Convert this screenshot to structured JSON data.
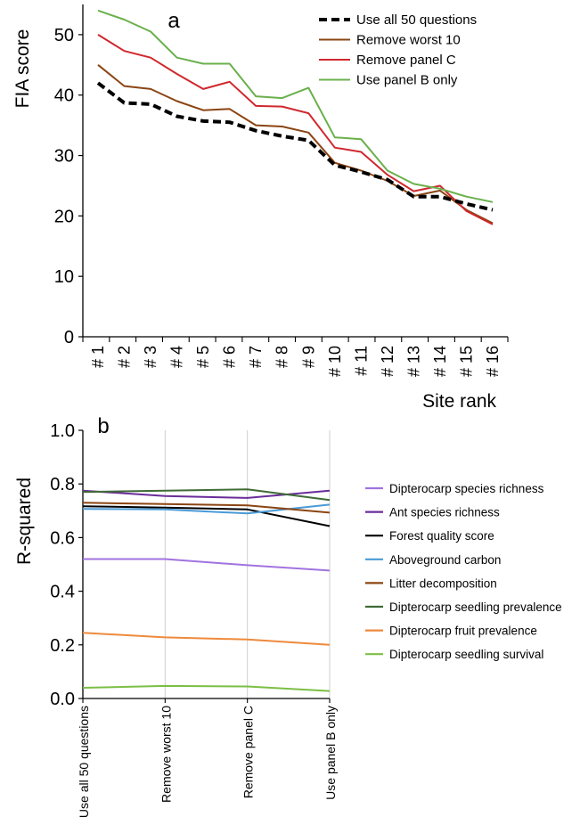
{
  "chart_data": [
    {
      "type": "line",
      "panel_label": "a",
      "title": "",
      "xlabel": "Site rank",
      "ylabel": "FIA score",
      "ylim": [
        0,
        55
      ],
      "yticks": [
        0,
        10,
        20,
        30,
        40,
        50
      ],
      "categories": [
        "# 1",
        "# 2",
        "# 3",
        "# 4",
        "# 5",
        "# 6",
        "# 7",
        "# 8",
        "# 9",
        "# 10",
        "# 11",
        "# 12",
        "# 13",
        "# 14",
        "# 15",
        "# 16"
      ],
      "grid": false,
      "legend_position": "top-right",
      "series": [
        {
          "name": "Use all 50 questions",
          "color": "#000000",
          "dashed": true,
          "values": [
            42,
            38.7,
            38.5,
            36.5,
            35.7,
            35.5,
            34.1,
            33.2,
            32.5,
            28.4,
            27.3,
            26,
            23.2,
            23.2,
            22,
            21
          ]
        },
        {
          "name": "Remove worst 10",
          "color": "#8B4513",
          "dashed": false,
          "values": [
            45,
            41.5,
            41,
            39,
            37.5,
            37.7,
            35,
            34.8,
            33.8,
            28.8,
            27.5,
            25.8,
            23.3,
            24.2,
            21,
            18.8
          ]
        },
        {
          "name": "Remove panel C",
          "color": "#D0282E",
          "dashed": false,
          "values": [
            50,
            47.3,
            46.2,
            43.5,
            41,
            42.2,
            38.2,
            38.1,
            37,
            31.3,
            30.6,
            26.8,
            24.1,
            25,
            20.8,
            18.6
          ]
        },
        {
          "name": "Use panel B only",
          "color": "#6AB04C",
          "dashed": false,
          "values": [
            54,
            52.5,
            50.5,
            46.2,
            45.2,
            45.2,
            39.8,
            39.5,
            41.2,
            33,
            32.7,
            27.5,
            25.3,
            24.5,
            23.2,
            22.3
          ]
        }
      ]
    },
    {
      "type": "line",
      "panel_label": "b",
      "title": "",
      "xlabel": "",
      "ylabel": "R-squared",
      "ylim": [
        0,
        1
      ],
      "yticks": [
        "0.0",
        "0.2",
        "0.4",
        "0.6",
        "0.8",
        "1.0"
      ],
      "categories": [
        "Use all 50 questions",
        "Remove worst 10",
        "Remove panel C",
        "Use panel B only"
      ],
      "grid": "vertical",
      "legend_position": "right",
      "series": [
        {
          "name": "Dipterocarp species richness",
          "color": "#A173E0",
          "values": [
            0.52,
            0.52,
            0.497,
            0.477
          ]
        },
        {
          "name": "Ant species richness",
          "color": "#6A2C9A",
          "values": [
            0.775,
            0.755,
            0.748,
            0.775
          ]
        },
        {
          "name": "Forest quality score",
          "color": "#000000",
          "values": [
            0.717,
            0.712,
            0.705,
            0.643
          ]
        },
        {
          "name": "Aboveground carbon",
          "color": "#4A9AD6",
          "values": [
            0.707,
            0.705,
            0.69,
            0.723
          ]
        },
        {
          "name": "Litter decomposition",
          "color": "#8B4513",
          "values": [
            0.73,
            0.725,
            0.72,
            0.693
          ]
        },
        {
          "name": "Dipterocarp seedling prevalence",
          "color": "#3F6B35",
          "values": [
            0.77,
            0.775,
            0.78,
            0.74
          ]
        },
        {
          "name": "Dipterocarp fruit prevalence",
          "color": "#EE8A3C",
          "values": [
            0.245,
            0.228,
            0.22,
            0.2
          ]
        },
        {
          "name": "Dipterocarp seedling survival",
          "color": "#7BBF45",
          "values": [
            0.04,
            0.047,
            0.045,
            0.028
          ]
        }
      ]
    }
  ]
}
